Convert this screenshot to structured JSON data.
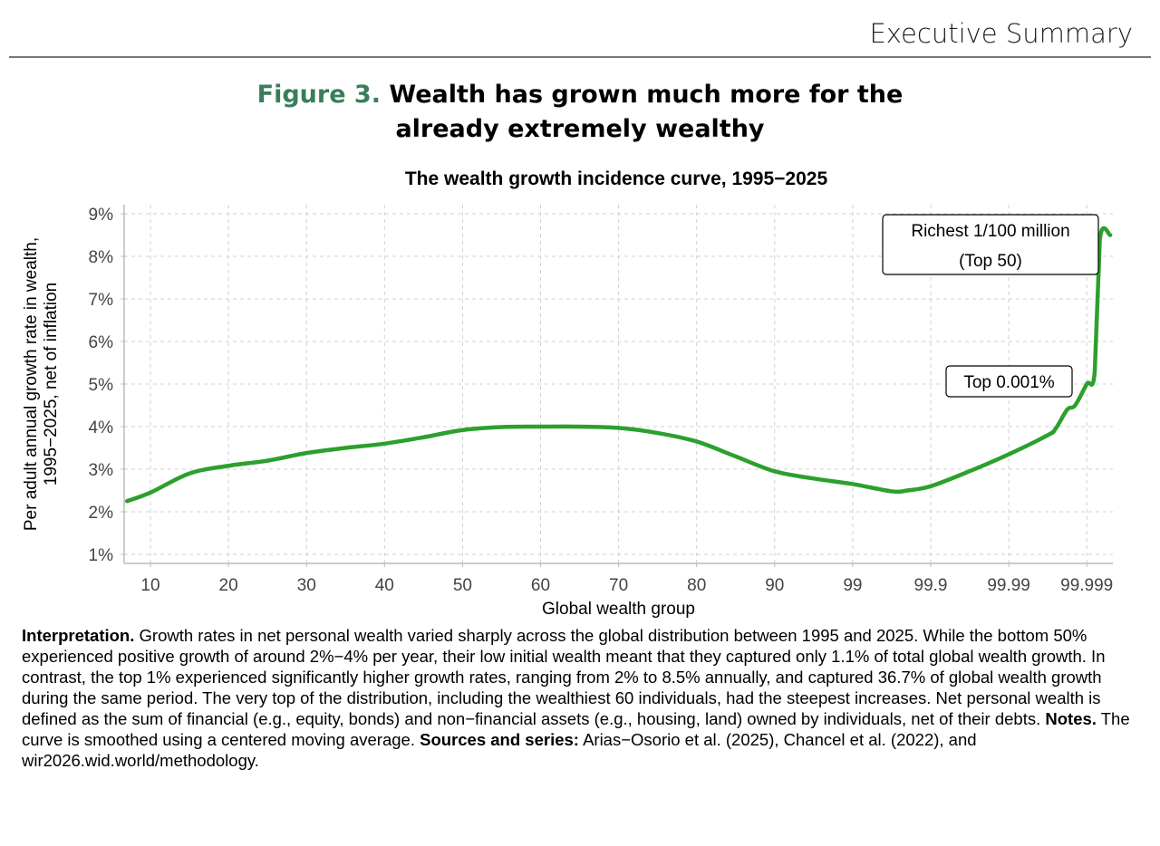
{
  "header": {
    "section": "Executive Summary"
  },
  "figure": {
    "number": "Figure 3.",
    "title": "Wealth has grown much more for the already extremely wealthy"
  },
  "chart_data": {
    "type": "line",
    "title": "The wealth growth incidence curve, 1995−2025",
    "xlabel": "Global wealth group",
    "ylabel": [
      "Per adult annual growth rate in wealth,",
      "1995−2025, net of inflation"
    ],
    "x_ticks": [
      "10",
      "20",
      "30",
      "40",
      "50",
      "60",
      "70",
      "80",
      "90",
      "99",
      "99.9",
      "99.99",
      "99.999"
    ],
    "x_tick_values": [
      10,
      20,
      30,
      40,
      50,
      60,
      70,
      80,
      90,
      99,
      99.9,
      99.99,
      99.999
    ],
    "y_ticks": [
      "1%",
      "2%",
      "3%",
      "4%",
      "5%",
      "6%",
      "7%",
      "8%",
      "9%"
    ],
    "y_tick_values": [
      1,
      2,
      3,
      4,
      5,
      6,
      7,
      8,
      9
    ],
    "ylim": [
      0.9,
      9.1
    ],
    "grid": true,
    "series": [
      {
        "name": "Per adult annual growth rate",
        "color": "#2ca02c",
        "x": [
          7,
          10,
          15,
          20,
          25,
          30,
          35,
          40,
          45,
          50,
          55,
          60,
          65,
          70,
          75,
          80,
          85,
          90,
          96.84,
          99,
          99.684,
          99.8,
          99.9,
          99.968,
          99.99,
          99.99684,
          99.99749,
          99.99822,
          99.99859,
          99.999,
          99.99921,
          99.99932,
          99.9995
        ],
        "y": [
          2.25,
          2.45,
          2.9,
          3.08,
          3.2,
          3.38,
          3.5,
          3.6,
          3.75,
          3.92,
          3.99,
          4.0,
          4.0,
          3.97,
          3.85,
          3.65,
          3.3,
          2.95,
          2.78,
          2.65,
          2.48,
          2.5,
          2.6,
          2.95,
          3.35,
          3.8,
          3.95,
          4.4,
          4.5,
          5.0,
          5.3,
          8.4,
          8.5
        ]
      }
    ],
    "annotations": [
      {
        "lines": [
          "Richest 1/100 million",
          "(Top 50)"
        ]
      },
      {
        "lines": [
          "Top 0.001%"
        ]
      }
    ]
  },
  "interpretation": {
    "label1": "Interpretation.",
    "text1": " Growth rates in net personal wealth varied sharply across the global distribution between 1995 and 2025. While the bottom 50% experienced positive growth of around 2%−4% per year, their low initial wealth meant that they captured only 1.1% of total global wealth growth. In contrast, the top 1% experienced significantly higher growth rates, ranging from 2% to 8.5% annually, and captured 36.7% of global wealth growth during the same period. The very top of the distribution, including the wealthiest 60 individuals, had the steepest increases. Net personal wealth is defined as the sum of financial (e.g., equity, bonds) and non−financial assets (e.g., housing, land) owned by individuals, net of their debts. ",
    "label2": "Notes.",
    "text2": " The curve is smoothed using a centered moving average. ",
    "label3": "Sources and series:",
    "text3": " Arias−Osorio et al. (2025), Chancel et al. (2022), and wir2026.wid.world/methodology."
  }
}
